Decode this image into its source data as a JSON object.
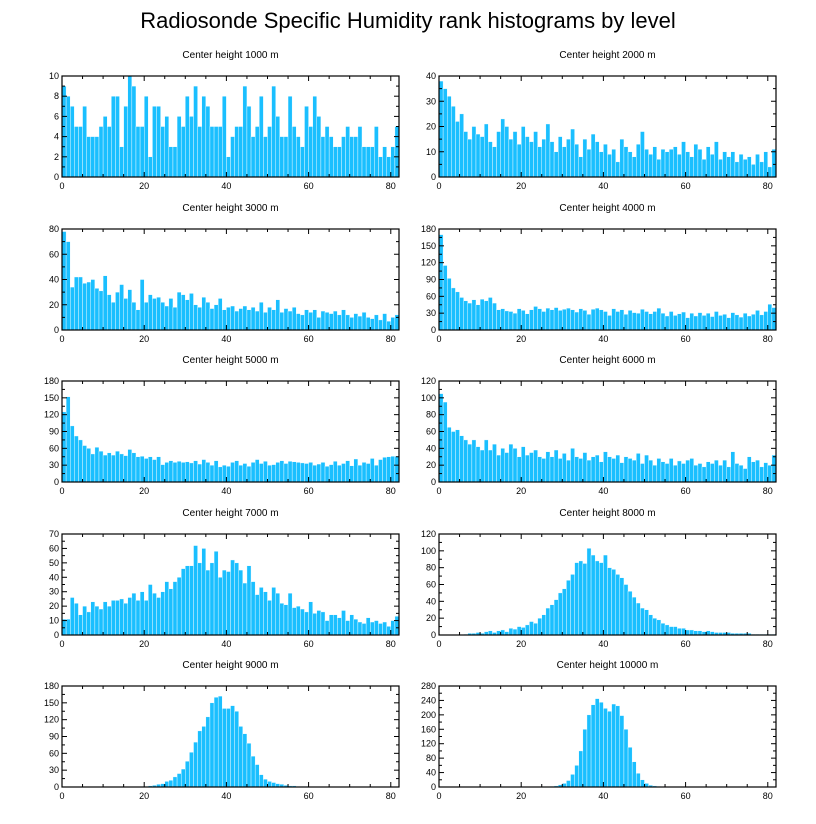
{
  "title": "Radiosonde Specific Humidity rank histograms by level",
  "style": {
    "bar_color": "#1abfff",
    "axis_color": "#000000"
  },
  "chart_data": [
    {
      "type": "bar",
      "title": "Center height 1000 m",
      "xlabel": "",
      "ylabel": "",
      "xlim": [
        0,
        82
      ],
      "ylim": [
        0,
        10
      ],
      "xticks": [
        0,
        20,
        40,
        60,
        80
      ],
      "yticks": [
        0,
        2,
        4,
        6,
        8,
        10
      ],
      "values": [
        9,
        8,
        7,
        5,
        5,
        7,
        4,
        4,
        4,
        5,
        6,
        5,
        8,
        8,
        3,
        7,
        10,
        9,
        5,
        5,
        8,
        2,
        7,
        7,
        5,
        6,
        3,
        3,
        6,
        5,
        8,
        6,
        9,
        5,
        8,
        7,
        5,
        5,
        5,
        8,
        2,
        4,
        5,
        5,
        9,
        7,
        4,
        5,
        8,
        4,
        5,
        9,
        6,
        4,
        4,
        8,
        5,
        4,
        3,
        7,
        5,
        8,
        6,
        4,
        5,
        4,
        3,
        3,
        4,
        5,
        4,
        4,
        5,
        3,
        3,
        3,
        5,
        2,
        3,
        2,
        3,
        5
      ]
    },
    {
      "type": "bar",
      "title": "Center height 2000 m",
      "xlabel": "",
      "ylabel": "",
      "xlim": [
        0,
        82
      ],
      "ylim": [
        0,
        40
      ],
      "xticks": [
        0,
        20,
        40,
        60,
        80
      ],
      "yticks": [
        0,
        10,
        20,
        30,
        40
      ],
      "values": [
        38,
        35,
        32,
        28,
        22,
        25,
        18,
        15,
        20,
        17,
        16,
        21,
        14,
        12,
        18,
        23,
        20,
        15,
        18,
        13,
        20,
        16,
        14,
        18,
        12,
        15,
        21,
        14,
        10,
        16,
        12,
        15,
        19,
        13,
        8,
        15,
        11,
        17,
        14,
        10,
        13,
        9,
        11,
        6,
        15,
        12,
        10,
        8,
        13,
        18,
        11,
        9,
        12,
        7,
        11,
        10,
        11,
        12,
        9,
        14,
        10,
        8,
        13,
        11,
        7,
        12,
        9,
        14,
        7,
        10,
        8,
        10,
        6,
        9,
        7,
        8,
        5,
        9,
        6,
        10,
        4,
        11
      ]
    },
    {
      "type": "bar",
      "title": "Center height 3000 m",
      "xlabel": "",
      "ylabel": "",
      "xlim": [
        0,
        82
      ],
      "ylim": [
        0,
        80
      ],
      "xticks": [
        0,
        20,
        40,
        60,
        80
      ],
      "yticks": [
        0,
        20,
        40,
        60,
        80
      ],
      "values": [
        78,
        70,
        34,
        42,
        42,
        37,
        38,
        40,
        33,
        31,
        43,
        28,
        22,
        30,
        36,
        25,
        32,
        22,
        16,
        40,
        22,
        28,
        25,
        26,
        22,
        19,
        25,
        18,
        30,
        28,
        24,
        29,
        20,
        18,
        26,
        22,
        17,
        20,
        25,
        16,
        18,
        19,
        15,
        17,
        19,
        16,
        18,
        15,
        22,
        14,
        18,
        16,
        24,
        14,
        17,
        15,
        18,
        13,
        12,
        16,
        14,
        16,
        10,
        15,
        14,
        13,
        15,
        12,
        16,
        12,
        10,
        13,
        11,
        14,
        10,
        9,
        12,
        8,
        13,
        7,
        10,
        12
      ]
    },
    {
      "type": "bar",
      "title": "Center height 4000 m",
      "xlabel": "",
      "ylabel": "",
      "xlim": [
        0,
        82
      ],
      "ylim": [
        0,
        180
      ],
      "xticks": [
        0,
        20,
        40,
        60,
        80
      ],
      "yticks": [
        0,
        30,
        60,
        90,
        120,
        150,
        180
      ],
      "values": [
        170,
        115,
        92,
        75,
        68,
        58,
        52,
        48,
        54,
        45,
        55,
        52,
        58,
        48,
        36,
        38,
        34,
        33,
        30,
        38,
        35,
        29,
        36,
        42,
        38,
        33,
        39,
        36,
        40,
        35,
        37,
        39,
        36,
        32,
        38,
        35,
        28,
        37,
        39,
        36,
        33,
        26,
        38,
        33,
        36,
        28,
        35,
        31,
        30,
        37,
        33,
        29,
        33,
        39,
        30,
        25,
        33,
        26,
        29,
        32,
        22,
        30,
        25,
        31,
        26,
        30,
        24,
        33,
        26,
        28,
        22,
        31,
        27,
        23,
        30,
        25,
        28,
        35,
        27,
        33,
        46,
        40
      ]
    },
    {
      "type": "bar",
      "title": "Center height 5000 m",
      "xlabel": "",
      "ylabel": "",
      "xlim": [
        0,
        82
      ],
      "ylim": [
        0,
        180
      ],
      "xticks": [
        0,
        20,
        40,
        60,
        80
      ],
      "yticks": [
        0,
        30,
        60,
        90,
        120,
        150,
        180
      ],
      "values": [
        125,
        152,
        100,
        82,
        75,
        65,
        60,
        50,
        62,
        55,
        48,
        52,
        48,
        55,
        50,
        47,
        58,
        52,
        45,
        46,
        42,
        45,
        40,
        45,
        31,
        35,
        38,
        35,
        37,
        35,
        36,
        34,
        38,
        32,
        40,
        35,
        30,
        38,
        27,
        30,
        28,
        35,
        38,
        30,
        33,
        28,
        35,
        40,
        33,
        37,
        30,
        31,
        35,
        38,
        33,
        37,
        36,
        35,
        34,
        33,
        35,
        30,
        32,
        35,
        28,
        31,
        37,
        30,
        33,
        38,
        29,
        41,
        30,
        35,
        33,
        42,
        30,
        40,
        44,
        45,
        46,
        46
      ]
    },
    {
      "type": "bar",
      "title": "Center height 6000 m",
      "xlabel": "",
      "ylabel": "",
      "xlim": [
        0,
        82
      ],
      "ylim": [
        0,
        120
      ],
      "xticks": [
        0,
        20,
        40,
        60,
        80
      ],
      "yticks": [
        0,
        20,
        40,
        60,
        80,
        100,
        120
      ],
      "values": [
        105,
        95,
        65,
        60,
        62,
        55,
        50,
        45,
        50,
        42,
        38,
        50,
        38,
        45,
        32,
        40,
        35,
        45,
        40,
        30,
        42,
        32,
        35,
        38,
        30,
        28,
        36,
        30,
        38,
        28,
        34,
        26,
        40,
        30,
        28,
        35,
        26,
        30,
        32,
        24,
        36,
        30,
        28,
        32,
        23,
        30,
        28,
        26,
        34,
        22,
        32,
        26,
        20,
        28,
        24,
        22,
        28,
        20,
        25,
        22,
        26,
        28,
        20,
        22,
        18,
        24,
        22,
        26,
        20,
        26,
        18,
        36,
        22,
        20,
        16,
        30,
        24,
        26,
        18,
        23,
        20,
        32
      ]
    },
    {
      "type": "bar",
      "title": "Center height 7000 m",
      "xlabel": "",
      "ylabel": "",
      "xlim": [
        0,
        82
      ],
      "ylim": [
        0,
        70
      ],
      "xticks": [
        0,
        20,
        40,
        60,
        80
      ],
      "yticks": [
        0,
        10,
        20,
        30,
        40,
        50,
        60,
        70
      ],
      "values": [
        11,
        11,
        26,
        22,
        14,
        20,
        16,
        23,
        20,
        18,
        23,
        20,
        24,
        24,
        25,
        22,
        26,
        29,
        24,
        30,
        24,
        35,
        29,
        26,
        30,
        37,
        32,
        37,
        40,
        46,
        48,
        48,
        62,
        50,
        60,
        45,
        50,
        58,
        40,
        45,
        44,
        52,
        50,
        45,
        36,
        48,
        37,
        28,
        33,
        30,
        24,
        33,
        29,
        22,
        21,
        29,
        19,
        20,
        18,
        16,
        23,
        15,
        17,
        16,
        10,
        14,
        14,
        12,
        17,
        10,
        14,
        11,
        9,
        8,
        12,
        9,
        10,
        8,
        9,
        6,
        10,
        13
      ]
    },
    {
      "type": "bar",
      "title": "Center height 8000 m",
      "xlabel": "",
      "ylabel": "",
      "xlim": [
        0,
        82
      ],
      "ylim": [
        0,
        120
      ],
      "xticks": [
        0,
        20,
        40,
        60,
        80
      ],
      "yticks": [
        0,
        20,
        40,
        60,
        80,
        100,
        120
      ],
      "values": [
        0,
        0,
        0,
        0,
        0,
        0,
        1,
        2,
        2,
        3,
        2,
        4,
        5,
        3,
        5,
        6,
        4,
        8,
        7,
        10,
        9,
        12,
        16,
        14,
        20,
        24,
        32,
        36,
        42,
        50,
        55,
        65,
        72,
        86,
        88,
        85,
        103,
        95,
        88,
        86,
        95,
        80,
        78,
        72,
        68,
        60,
        52,
        45,
        38,
        32,
        30,
        24,
        20,
        18,
        14,
        12,
        10,
        10,
        8,
        8,
        6,
        6,
        5,
        5,
        4,
        5,
        4,
        3,
        3,
        3,
        3,
        2,
        2,
        2,
        2,
        2,
        1,
        1,
        1,
        1,
        1,
        1
      ]
    },
    {
      "type": "bar",
      "title": "Center height 9000 m",
      "xlabel": "",
      "ylabel": "",
      "xlim": [
        0,
        82
      ],
      "ylim": [
        0,
        180
      ],
      "xticks": [
        0,
        20,
        40,
        60,
        80
      ],
      "yticks": [
        0,
        30,
        60,
        90,
        120,
        150,
        180
      ],
      "values": [
        0,
        0,
        0,
        0,
        0,
        0,
        0,
        0,
        0,
        0,
        0,
        0,
        0,
        0,
        0,
        0,
        0,
        0,
        0,
        1,
        1,
        2,
        3,
        5,
        6,
        10,
        12,
        18,
        24,
        32,
        46,
        62,
        80,
        100,
        108,
        125,
        150,
        160,
        162,
        140,
        140,
        145,
        135,
        108,
        95,
        78,
        55,
        40,
        22,
        14,
        10,
        8,
        6,
        5,
        3,
        2,
        2,
        1,
        1,
        1,
        0,
        0,
        0,
        0,
        0,
        0,
        0,
        0,
        0,
        0,
        0,
        0,
        0,
        0,
        0,
        0,
        0,
        0,
        0,
        0,
        0,
        0
      ]
    },
    {
      "type": "bar",
      "title": "Center height 10000 m",
      "xlabel": "",
      "ylabel": "",
      "xlim": [
        0,
        82
      ],
      "ylim": [
        0,
        280
      ],
      "xticks": [
        0,
        20,
        40,
        60,
        80
      ],
      "yticks": [
        0,
        40,
        80,
        120,
        160,
        200,
        240,
        280
      ],
      "values": [
        0,
        0,
        0,
        0,
        0,
        0,
        0,
        0,
        0,
        0,
        0,
        0,
        0,
        0,
        0,
        0,
        0,
        0,
        0,
        0,
        0,
        0,
        0,
        0,
        0,
        0,
        1,
        2,
        3,
        6,
        10,
        18,
        35,
        60,
        100,
        160,
        200,
        228,
        245,
        235,
        218,
        210,
        230,
        225,
        198,
        160,
        110,
        70,
        38,
        20,
        10,
        5,
        3,
        2,
        1,
        1,
        0,
        0,
        0,
        0,
        0,
        0,
        0,
        0,
        0,
        0,
        0,
        0,
        0,
        0,
        0,
        0,
        0,
        0,
        0,
        0,
        0,
        0,
        0,
        0,
        0,
        0
      ]
    }
  ]
}
